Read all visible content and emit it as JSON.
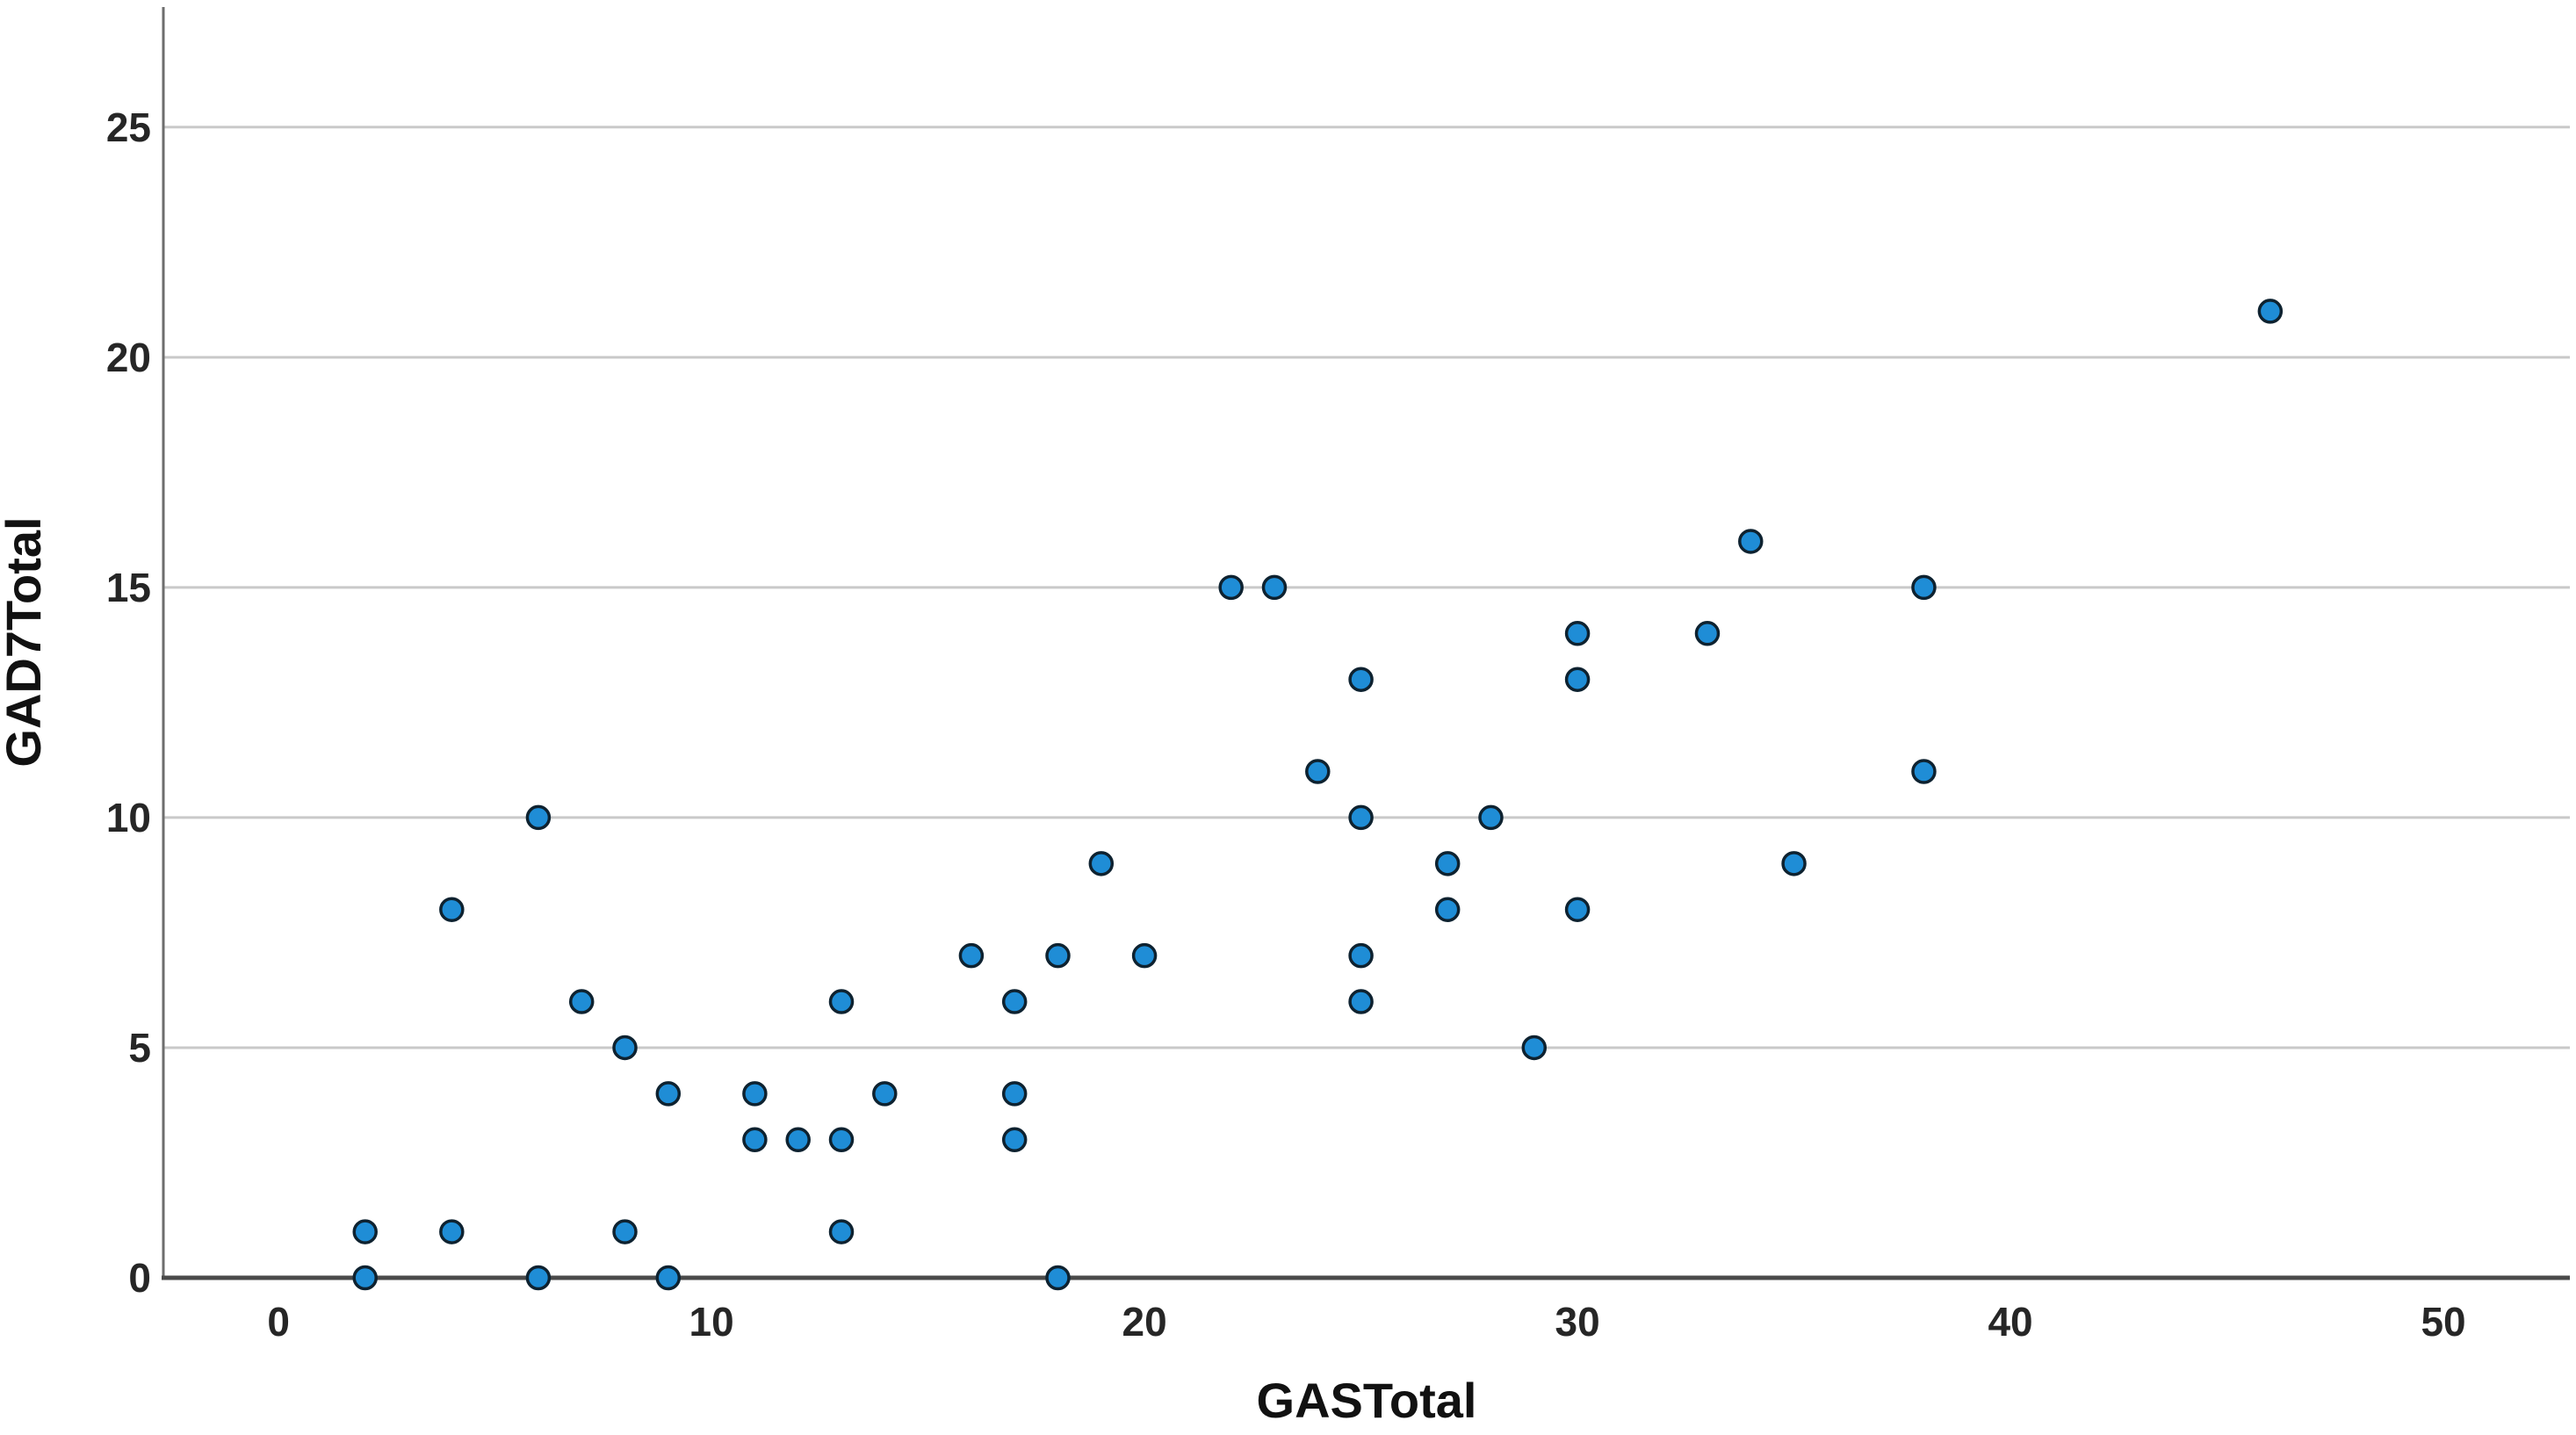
{
  "chart_data": {
    "type": "scatter",
    "title": "",
    "xlabel": "GASTotal",
    "ylabel": "GAD7Total",
    "x_ticks": [
      0,
      10,
      20,
      30,
      40,
      50
    ],
    "y_ticks": [
      0,
      5,
      10,
      15,
      20,
      25
    ],
    "xlim": [
      -2.66,
      52.92
    ],
    "ylim": [
      0,
      27.61
    ],
    "grid": "horizontal-only",
    "legend": "none",
    "points": [
      [
        2,
        0
      ],
      [
        6,
        0
      ],
      [
        9,
        0
      ],
      [
        18,
        0
      ],
      [
        2,
        1
      ],
      [
        4,
        1
      ],
      [
        8,
        1
      ],
      [
        13,
        1
      ],
      [
        11,
        3
      ],
      [
        12,
        3
      ],
      [
        13,
        3
      ],
      [
        17,
        3
      ],
      [
        9,
        4
      ],
      [
        11,
        4
      ],
      [
        14,
        4
      ],
      [
        17,
        4
      ],
      [
        8,
        5
      ],
      [
        29,
        5
      ],
      [
        7,
        6
      ],
      [
        13,
        6
      ],
      [
        17,
        6
      ],
      [
        25,
        6
      ],
      [
        16,
        7
      ],
      [
        18,
        7
      ],
      [
        20,
        7
      ],
      [
        25,
        7
      ],
      [
        4,
        8
      ],
      [
        27,
        8
      ],
      [
        30,
        8
      ],
      [
        19,
        9
      ],
      [
        27,
        9
      ],
      [
        35,
        9
      ],
      [
        6,
        10
      ],
      [
        25,
        10
      ],
      [
        28,
        10
      ],
      [
        24,
        11
      ],
      [
        38,
        11
      ],
      [
        25,
        13
      ],
      [
        30,
        13
      ],
      [
        30,
        14
      ],
      [
        33,
        14
      ],
      [
        22,
        15
      ],
      [
        23,
        15
      ],
      [
        38,
        15
      ],
      [
        34,
        16
      ],
      [
        46,
        21
      ]
    ],
    "colors": {
      "point_fill": "#1F8DD6",
      "point_stroke": "#0E2230",
      "gridline": "#C9C9C9",
      "x_axis_line": "#4A4A4A",
      "y_axis_line": "#6E6E6E",
      "tick_label": "#262626",
      "axis_title": "#111111",
      "background": "#FFFFFF"
    }
  }
}
